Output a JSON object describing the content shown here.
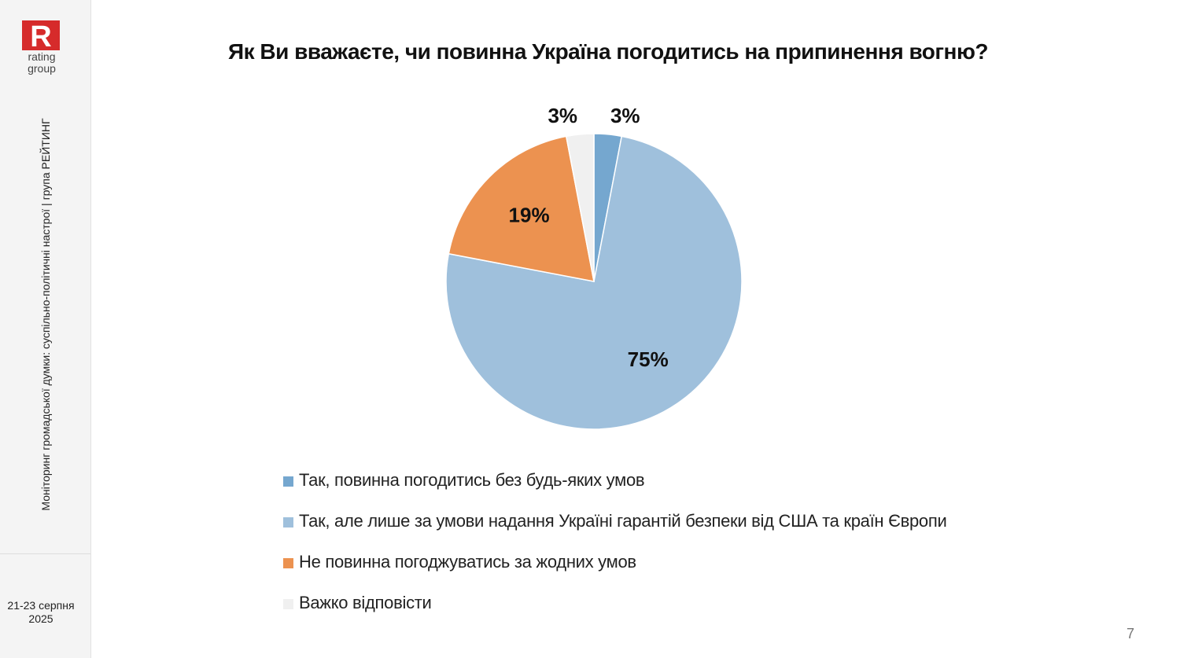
{
  "brand": {
    "logo_letter": "R",
    "logo_line1": "rating",
    "logo_line2": "group",
    "accent_color": "#d62b2b"
  },
  "sidebar": {
    "vertical_caption": "Моніторинг громадської думки: суспільно-політичні настрої | група РЕЙТИНГ",
    "date_line1": "21-23 серпня",
    "date_line2": "2025"
  },
  "page_number": "7",
  "chart_data": {
    "type": "pie",
    "title": "Як Ви вважаєте, чи повинна Україна погодитись на припинення вогню?",
    "slices": [
      {
        "label": "Так, повинна погодитись без будь-яких умов",
        "value": 3,
        "data_label": "3%",
        "color": "#75a7cf"
      },
      {
        "label": "Так, але лише за умови надання Україні гарантій безпеки від США та країн Європи",
        "value": 75,
        "data_label": "75%",
        "color": "#9fc0dc"
      },
      {
        "label": "Не повинна погоджуватись за жодних умов",
        "value": 19,
        "data_label": "19%",
        "color": "#ec9250"
      },
      {
        "label": "Важко відповісти",
        "value": 3,
        "data_label": "3%",
        "color": "#f0f0f0"
      }
    ],
    "legend_position": "bottom"
  }
}
